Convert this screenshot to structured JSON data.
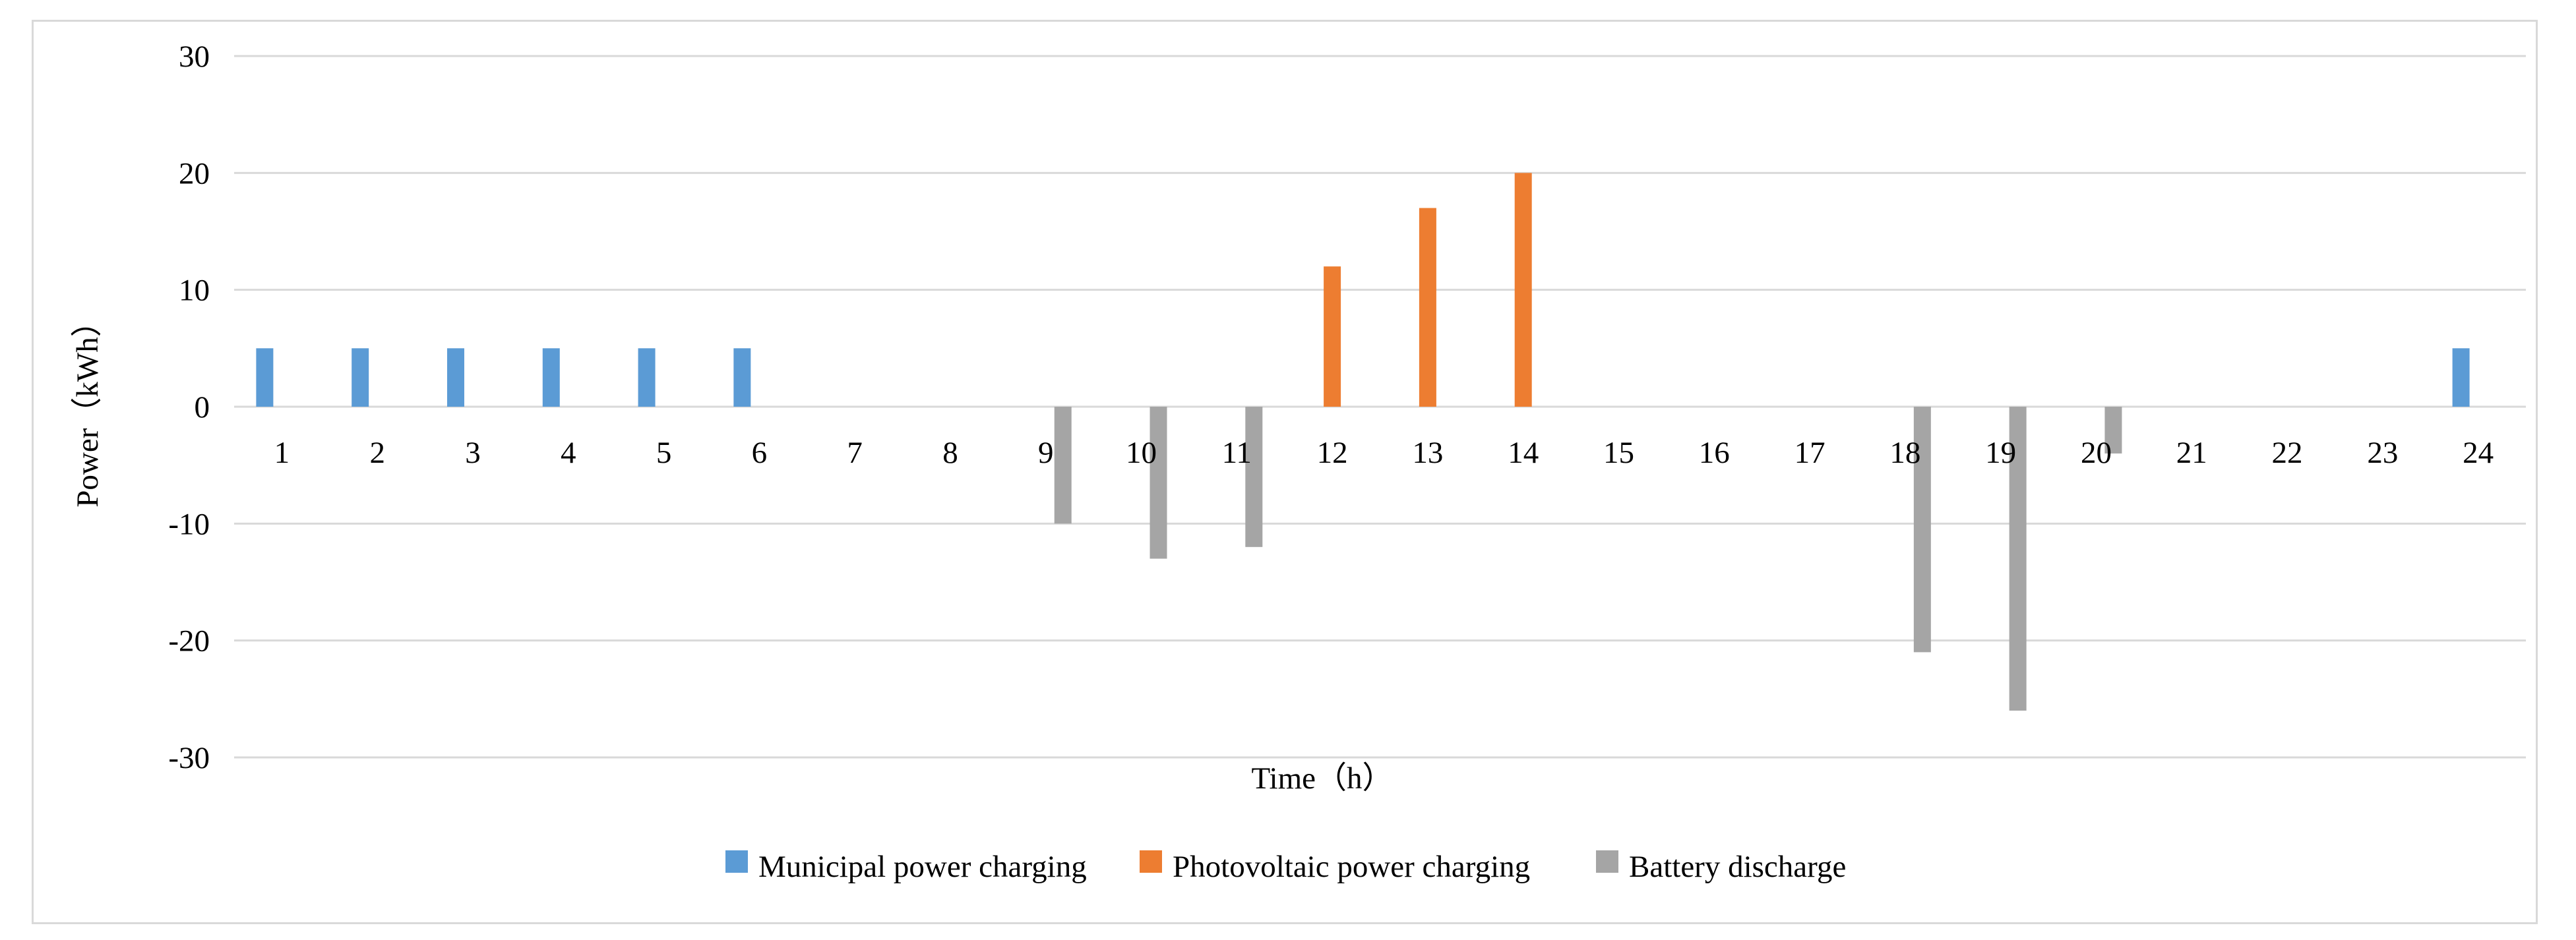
{
  "chart_data": {
    "type": "bar",
    "title": "",
    "xlabel": "Time（h）",
    "ylabel": "Power（kWh）",
    "ylim": [
      -30,
      30
    ],
    "yticks": [
      30,
      20,
      10,
      0,
      -10,
      -20,
      -30
    ],
    "ytick_labels": [
      "30",
      "20",
      "10",
      "0",
      "-10",
      "-20",
      "-30"
    ],
    "categories": [
      "1",
      "2",
      "3",
      "4",
      "5",
      "6",
      "7",
      "8",
      "9",
      "10",
      "11",
      "12",
      "13",
      "14",
      "15",
      "16",
      "17",
      "18",
      "19",
      "20",
      "21",
      "22",
      "23",
      "24"
    ],
    "grid": true,
    "legend_position": "bottom",
    "series": [
      {
        "name": "Municipal power charging",
        "color": "#5b9bd5",
        "values": [
          5,
          5,
          5,
          5,
          5,
          5,
          0,
          0,
          0,
          0,
          0,
          0,
          0,
          0,
          0,
          0,
          0,
          0,
          0,
          0,
          0,
          0,
          0,
          5
        ]
      },
      {
        "name": "Photovoltaic power charging",
        "color": "#ed7d31",
        "values": [
          0,
          0,
          0,
          0,
          0,
          0,
          0,
          0,
          0,
          0,
          0,
          12,
          17,
          20,
          0,
          0,
          0,
          0,
          0,
          0,
          0,
          0,
          0,
          0
        ]
      },
      {
        "name": "Battery discharge",
        "color": "#a5a5a5",
        "values": [
          0,
          0,
          0,
          0,
          0,
          0,
          0,
          0,
          -10,
          -13,
          -12,
          0,
          0,
          0,
          0,
          0,
          0,
          -21,
          -26,
          -4,
          0,
          0,
          0,
          0
        ]
      }
    ]
  }
}
